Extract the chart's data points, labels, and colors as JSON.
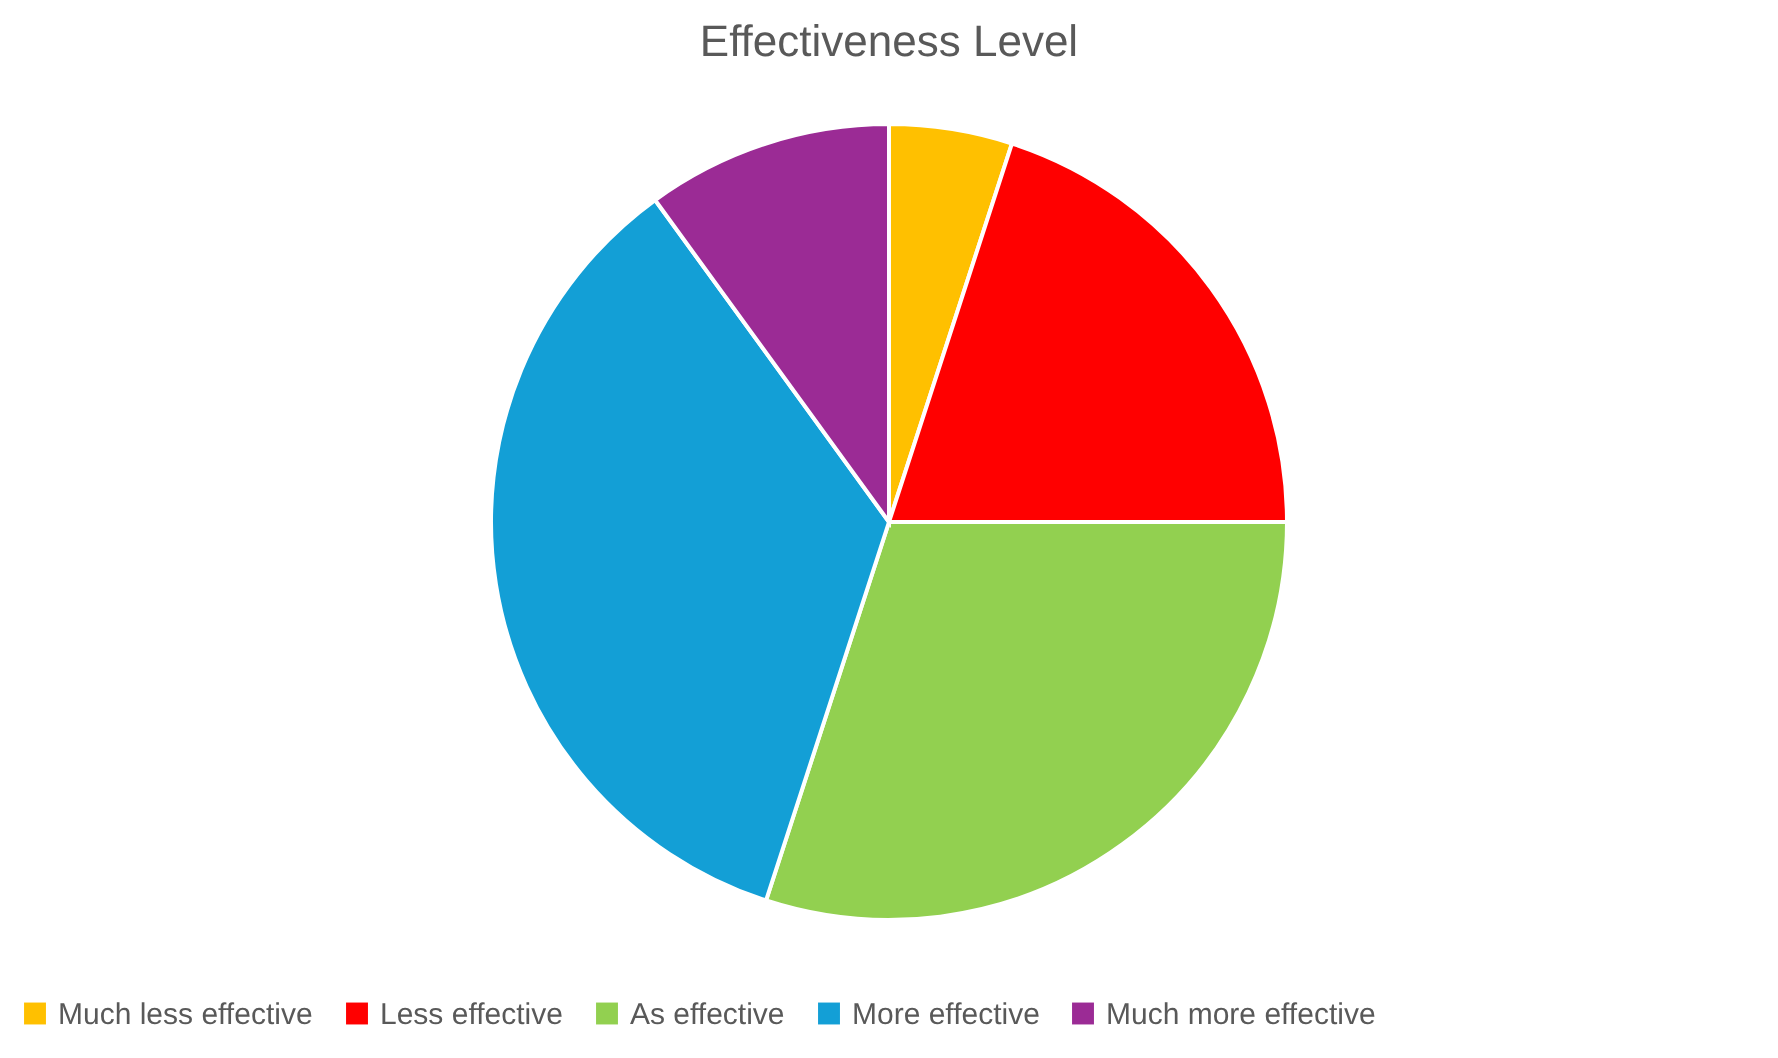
{
  "chart_data": {
    "type": "pie",
    "title": "Effectiveness Level",
    "categories": [
      "Much less effective",
      "Less effective",
      "As effective",
      "More effective",
      "Much more effective"
    ],
    "values": [
      5,
      20,
      30,
      35,
      10
    ],
    "colors": [
      "#ffc000",
      "#ff0000",
      "#92d050",
      "#139fd6",
      "#9b2b95"
    ],
    "legend": "bottom"
  }
}
